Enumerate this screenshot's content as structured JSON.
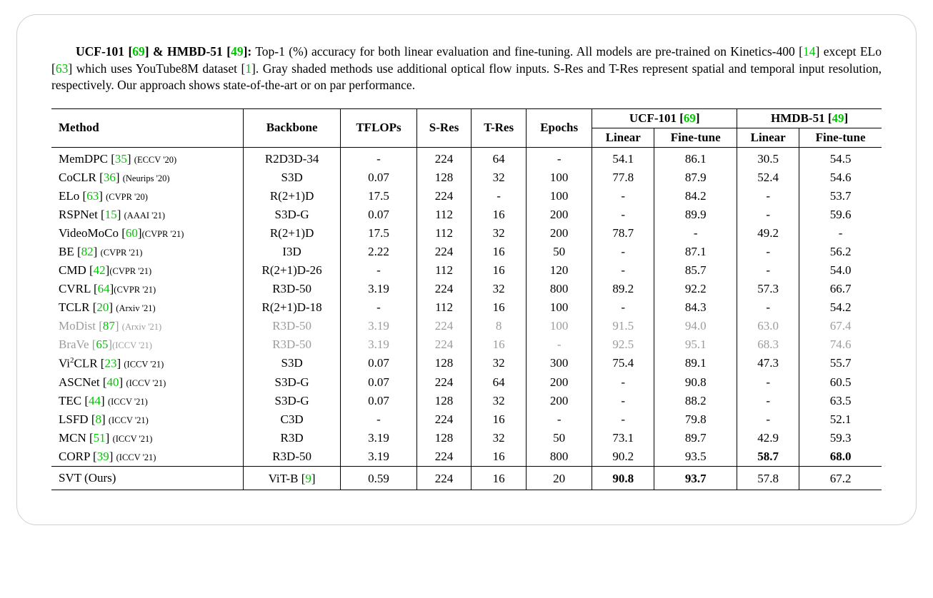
{
  "caption": {
    "lead": "UCF-101 [",
    "lead_cite1": "69",
    "lead_mid": "] & HMBD-51 [",
    "lead_cite2": "49",
    "lead_end": "]:",
    "body1": " Top-1 (%) accuracy for both linear evaluation and fine-tuning. All models are pre-trained on Kinetics-400 [",
    "cite3": "14",
    "body2": "] except ELo [",
    "cite4": "63",
    "body3": "] which uses YouTube8M dataset [",
    "cite5": "1",
    "body4": "]. Gray shaded methods use additional optical flow inputs. S-Res and T-Res represent spatial and temporal input resolution, respectively. Our approach shows state-of-the-art or on par performance."
  },
  "headers": {
    "method": "Method",
    "backbone": "Backbone",
    "tflops": "TFLOPs",
    "sres": "S-Res",
    "tres": "T-Res",
    "epochs": "Epochs",
    "ucf": "UCF-101 [",
    "ucf_cite": "69",
    "ucf_end": "]",
    "hmdb": "HMDB-51 [",
    "hmdb_cite": "49",
    "hmdb_end": "]",
    "linear": "Linear",
    "finetune": "Fine-tune"
  },
  "rows": [
    {
      "method": "MemDPC [",
      "cite": "35",
      "close": "] ",
      "venue": "(ECCV '20)",
      "backbone": "R2D3D-34",
      "tflops": "-",
      "sres": "224",
      "tres": "64",
      "epochs": "-",
      "ucf_l": "54.1",
      "ucf_f": "86.1",
      "hmdb_l": "30.5",
      "hmdb_f": "54.5",
      "gray": false
    },
    {
      "method": "CoCLR [",
      "cite": "36",
      "close": "] ",
      "venue": "(Neurips '20)",
      "backbone": "S3D",
      "tflops": "0.07",
      "sres": "128",
      "tres": "32",
      "epochs": "100",
      "ucf_l": "77.8",
      "ucf_f": "87.9",
      "hmdb_l": "52.4",
      "hmdb_f": "54.6",
      "gray": false
    },
    {
      "method": "ELo [",
      "cite": "63",
      "close": "] ",
      "venue": "(CVPR '20)",
      "backbone": "R(2+1)D",
      "tflops": "17.5",
      "sres": "224",
      "tres": "-",
      "epochs": "100",
      "ucf_l": "-",
      "ucf_f": "84.2",
      "hmdb_l": "-",
      "hmdb_f": "53.7",
      "gray": false
    },
    {
      "method": "RSPNet [",
      "cite": "15",
      "close": "] ",
      "venue": "(AAAI '21)",
      "backbone": "S3D-G",
      "tflops": "0.07",
      "sres": "112",
      "tres": "16",
      "epochs": "200",
      "ucf_l": "-",
      "ucf_f": "89.9",
      "hmdb_l": "-",
      "hmdb_f": "59.6",
      "gray": false
    },
    {
      "method": "VideoMoCo [",
      "cite": "60",
      "close": "]",
      "venue": "(CVPR '21)",
      "backbone": "R(2+1)D",
      "tflops": "17.5",
      "sres": "112",
      "tres": "32",
      "epochs": "200",
      "ucf_l": "78.7",
      "ucf_f": "-",
      "hmdb_l": "49.2",
      "hmdb_f": "-",
      "gray": false
    },
    {
      "method": "BE [",
      "cite": "82",
      "close": "] ",
      "venue": "(CVPR '21)",
      "backbone": "I3D",
      "tflops": "2.22",
      "sres": "224",
      "tres": "16",
      "epochs": "50",
      "ucf_l": "-",
      "ucf_f": "87.1",
      "hmdb_l": "-",
      "hmdb_f": "56.2",
      "gray": false
    },
    {
      "method": "CMD [",
      "cite": "42",
      "close": "]",
      "venue": "(CVPR '21)",
      "backbone": "R(2+1)D-26",
      "tflops": "-",
      "sres": "112",
      "tres": "16",
      "epochs": "120",
      "ucf_l": "-",
      "ucf_f": "85.7",
      "hmdb_l": "-",
      "hmdb_f": "54.0",
      "gray": false
    },
    {
      "method": "CVRL [",
      "cite": "64",
      "close": "]",
      "venue": "(CVPR '21)",
      "backbone": "R3D-50",
      "tflops": "3.19",
      "sres": "224",
      "tres": "32",
      "epochs": "800",
      "ucf_l": "89.2",
      "ucf_f": "92.2",
      "hmdb_l": "57.3",
      "hmdb_f": "66.7",
      "gray": false
    },
    {
      "method": "TCLR [",
      "cite": "20",
      "close": "] ",
      "venue": "(Arxiv '21)",
      "backbone": "R(2+1)D-18",
      "tflops": "-",
      "sres": "112",
      "tres": "16",
      "epochs": "100",
      "ucf_l": "-",
      "ucf_f": "84.3",
      "hmdb_l": "-",
      "hmdb_f": "54.2",
      "gray": false
    },
    {
      "method": "MoDist [",
      "cite": "87",
      "close": "] ",
      "venue": "(Arxiv '21)",
      "backbone": "R3D-50",
      "tflops": "3.19",
      "sres": "224",
      "tres": "8",
      "epochs": "100",
      "ucf_l": "91.5",
      "ucf_f": "94.0",
      "hmdb_l": "63.0",
      "hmdb_f": "67.4",
      "gray": true
    },
    {
      "method": "BraVe [",
      "cite": "65",
      "close": "]",
      "venue": "(ICCV '21)",
      "backbone": "R3D-50",
      "tflops": "3.19",
      "sres": "224",
      "tres": "16",
      "epochs": "-",
      "ucf_l": "92.5",
      "ucf_f": "95.1",
      "hmdb_l": "68.3",
      "hmdb_f": "74.6",
      "gray": true
    },
    {
      "method": "Vi",
      "sup": "2",
      "method2": "CLR [",
      "cite": "23",
      "close": "] ",
      "venue": "(ICCV '21)",
      "backbone": "S3D",
      "tflops": "0.07",
      "sres": "128",
      "tres": "32",
      "epochs": "300",
      "ucf_l": "75.4",
      "ucf_f": "89.1",
      "hmdb_l": "47.3",
      "hmdb_f": "55.7",
      "gray": false
    },
    {
      "method": "ASCNet [",
      "cite": "40",
      "close": "] ",
      "venue": "(ICCV '21)",
      "backbone": "S3D-G",
      "tflops": "0.07",
      "sres": "224",
      "tres": "64",
      "epochs": "200",
      "ucf_l": "-",
      "ucf_f": "90.8",
      "hmdb_l": "-",
      "hmdb_f": "60.5",
      "gray": false
    },
    {
      "method": "TEC [",
      "cite": "44",
      "close": "] ",
      "venue": "(ICCV '21)",
      "backbone": "S3D-G",
      "tflops": "0.07",
      "sres": "128",
      "tres": "32",
      "epochs": "200",
      "ucf_l": "-",
      "ucf_f": "88.2",
      "hmdb_l": "-",
      "hmdb_f": "63.5",
      "gray": false
    },
    {
      "method": "LSFD [",
      "cite": "8",
      "close": "] ",
      "venue": "(ICCV '21)",
      "backbone": "C3D",
      "tflops": "-",
      "sres": "224",
      "tres": "16",
      "epochs": "-",
      "ucf_l": "-",
      "ucf_f": "79.8",
      "hmdb_l": "-",
      "hmdb_f": "52.1",
      "gray": false
    },
    {
      "method": "MCN [",
      "cite": "51",
      "close": "] ",
      "venue": "(ICCV '21)",
      "backbone": "R3D",
      "tflops": "3.19",
      "sres": "128",
      "tres": "32",
      "epochs": "50",
      "ucf_l": "73.1",
      "ucf_f": "89.7",
      "hmdb_l": "42.9",
      "hmdb_f": "59.3",
      "gray": false
    },
    {
      "method": "CORP [",
      "cite": "39",
      "close": "] ",
      "venue": "(ICCV '21)",
      "backbone": "R3D-50",
      "tflops": "3.19",
      "sres": "224",
      "tres": "16",
      "epochs": "800",
      "ucf_l": "90.2",
      "ucf_f": "93.5",
      "hmdb_l": "58.7",
      "hmdb_f": "68.0",
      "gray": false,
      "bold_hmdb": true
    }
  ],
  "ours": {
    "method": "SVT (Ours)",
    "backbone_pre": "ViT-B [",
    "backbone_cite": "9",
    "backbone_post": "]",
    "tflops": "0.59",
    "sres": "224",
    "tres": "16",
    "epochs": "20",
    "ucf_l": "90.8",
    "ucf_f": "93.7",
    "hmdb_l": "57.8",
    "hmdb_f": "67.2"
  }
}
